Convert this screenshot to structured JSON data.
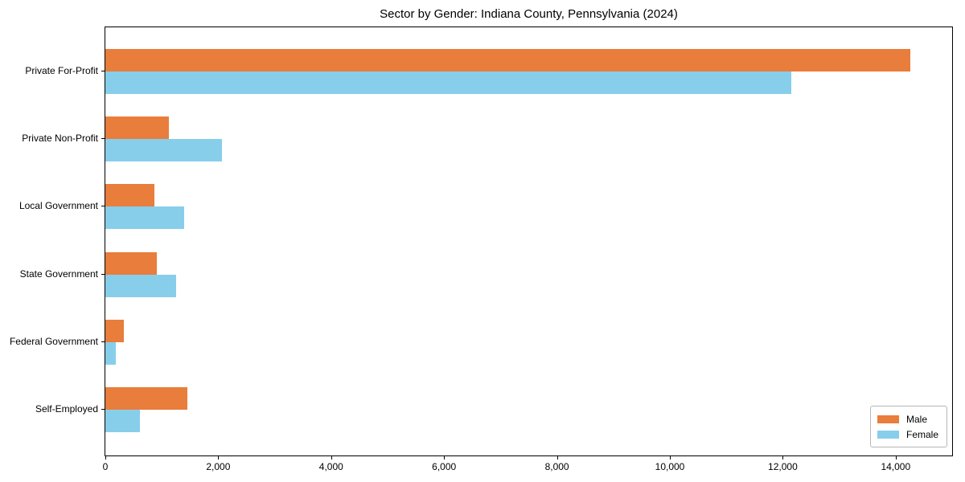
{
  "figure": {
    "title": "Sector by Gender: Indiana County, Pennsylvania (2024)"
  },
  "chart_data": {
    "type": "bar",
    "orientation": "horizontal",
    "title": "Sector by Gender: Indiana County, Pennsylvania (2024)",
    "categories": [
      "Private For-Profit",
      "Private Non-Profit",
      "Local Government",
      "State Government",
      "Federal Government",
      "Self-Employed"
    ],
    "series": [
      {
        "name": "Male",
        "color": "#E87D3C",
        "values": [
          14260,
          1130,
          870,
          910,
          330,
          1450
        ]
      },
      {
        "name": "Female",
        "color": "#87CEEB",
        "values": [
          12150,
          2070,
          1400,
          1250,
          180,
          610
        ]
      }
    ],
    "xlabel": "",
    "ylabel": "",
    "xlim": [
      0,
      15000
    ],
    "x_ticks": [
      0,
      2000,
      4000,
      6000,
      8000,
      10000,
      12000,
      14000
    ],
    "x_tick_labels": [
      "0",
      "2,000",
      "4,000",
      "6,000",
      "8,000",
      "10,000",
      "12,000",
      "14,000"
    ],
    "grid": false,
    "legend_position": "lower right",
    "axis_color": "#000000",
    "background_color": "#ffffff"
  }
}
